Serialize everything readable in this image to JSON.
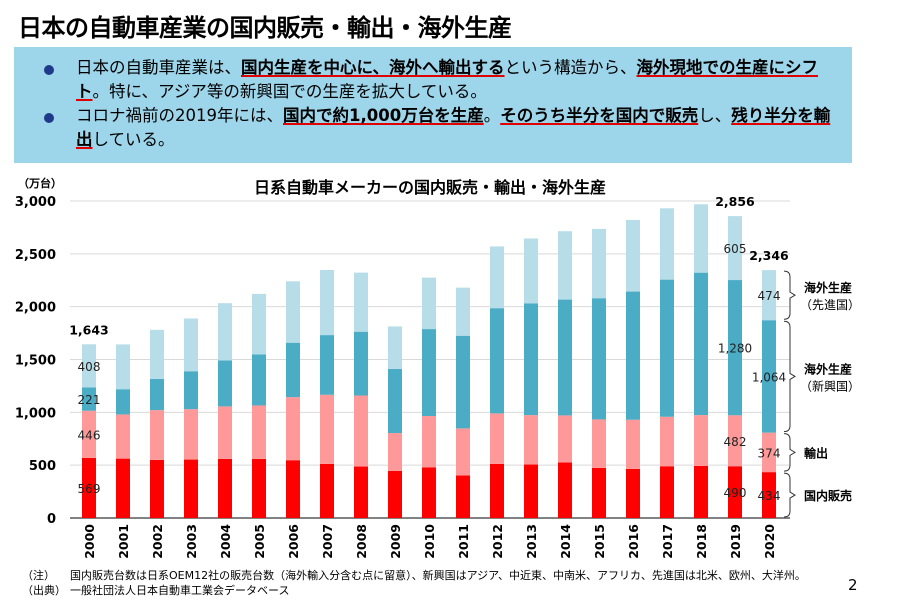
{
  "page": {
    "title": "日本の自動車産業の国内販売・輸出・海外生産",
    "page_number": "2"
  },
  "summary": {
    "bullets": [
      [
        {
          "text": "日本の自動車産業は、",
          "emphasis": false
        },
        {
          "text": "国内生産を中心に、海外へ輸出する",
          "emphasis": true
        },
        {
          "text": "という構造から、",
          "emphasis": false
        },
        {
          "text": "海外現地での生産にシフト",
          "emphasis": true
        },
        {
          "text": "。特に、アジア等の新興国での生産を拡大している。",
          "emphasis": false
        }
      ],
      [
        {
          "text": "コロナ禍前の2019年には、",
          "emphasis": false
        },
        {
          "text": "国内で約1,000万台を生産",
          "emphasis": true
        },
        {
          "text": "。",
          "emphasis": false
        },
        {
          "text": "そのうち半分を国内で販売",
          "emphasis": true
        },
        {
          "text": "し、",
          "emphasis": false
        },
        {
          "text": "残り半分を輸出",
          "emphasis": true
        },
        {
          "text": "している。",
          "emphasis": false
        }
      ]
    ]
  },
  "notes": {
    "note_label": "（注）",
    "note_text": "国内販売台数は日系OEM12社の販売台数（海外輸入分含む点に留意）、新興国はアジア、中近東、中南米、アフリカ、先進国は北米、欧州、大洋州。",
    "source_label": "（出典）",
    "source_text": "一般社団法人日本自動車工業会データベース"
  },
  "chart_data": {
    "type": "bar",
    "stacked": true,
    "title": "日系自動車メーカーの国内販売・輸出・海外生産",
    "ylabel": "（万台）",
    "ylim": [
      0,
      3000
    ],
    "yticks": [
      0,
      500,
      1000,
      1500,
      2000,
      2500,
      3000
    ],
    "ytick_labels": [
      "0",
      "500",
      "1,000",
      "1,500",
      "2,000",
      "2,500",
      "3,000"
    ],
    "grid": true,
    "legend": "right-brackets",
    "categories": [
      "2000",
      "2001",
      "2002",
      "2003",
      "2004",
      "2005",
      "2006",
      "2007",
      "2008",
      "2009",
      "2010",
      "2011",
      "2012",
      "2013",
      "2014",
      "2015",
      "2016",
      "2017",
      "2018",
      "2019",
      "2020"
    ],
    "series": [
      {
        "name": "国内販売",
        "color": "#ff0000",
        "values": [
          569,
          562,
          550,
          553,
          559,
          559,
          547,
          512,
          487,
          446,
          478,
          402,
          512,
          506,
          525,
          474,
          465,
          490,
          493,
          490,
          434
        ]
      },
      {
        "name": "輸出",
        "color": "#ff9999",
        "values": [
          446,
          418,
          471,
          477,
          497,
          506,
          597,
          654,
          672,
          358,
          487,
          446,
          478,
          468,
          446,
          459,
          465,
          468,
          481,
          482,
          374
        ]
      },
      {
        "name": "海外生産（新興国）",
        "color": "#4bacc6",
        "values": [
          221,
          239,
          295,
          359,
          436,
          484,
          515,
          565,
          604,
          607,
          823,
          877,
          996,
          1056,
          1096,
          1147,
          1213,
          1298,
          1348,
          1280,
          1064
        ]
      },
      {
        "name": "海外生産（先進国）",
        "color": "#b7dde8",
        "values": [
          408,
          424,
          465,
          499,
          541,
          572,
          581,
          616,
          559,
          402,
          487,
          455,
          584,
          615,
          647,
          656,
          678,
          675,
          647,
          605,
          474
        ]
      }
    ],
    "data_labels": {
      "2000": [
        "569",
        "446",
        "221",
        "408"
      ],
      "2019": [
        "490",
        "482",
        "1,280",
        "605"
      ],
      "2020": [
        "434",
        "374",
        "1,064",
        "474"
      ]
    },
    "total_labels": {
      "2000": "1,643",
      "2019": "2,856",
      "2020": "2,346"
    },
    "legend_labels": [
      {
        "line1": "海外生産",
        "line2": "（先進国）"
      },
      {
        "line1": "海外生産",
        "line2": "（新興国）"
      },
      {
        "line1": "輸出",
        "line2": ""
      },
      {
        "line1": "国内販売",
        "line2": ""
      }
    ]
  }
}
